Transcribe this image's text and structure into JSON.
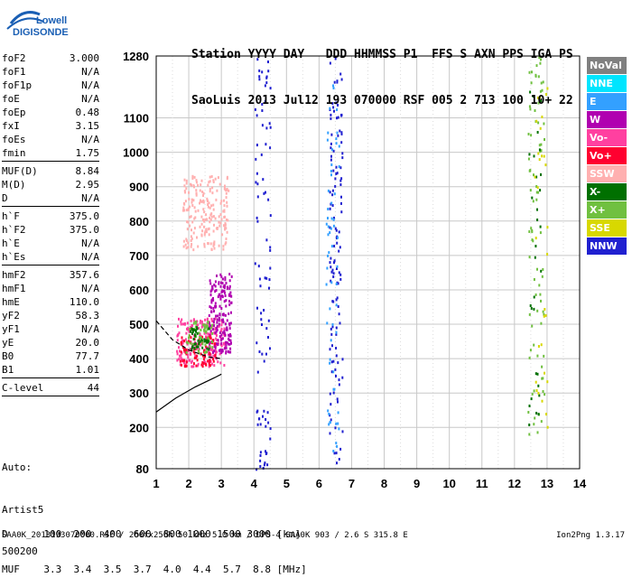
{
  "logo": {
    "line1": "Lowell",
    "line2": "DIGISONDE"
  },
  "header": {
    "line1": "Station YYYY DAY   DDD HHMMSS P1  FFS S AXN PPS IGA PS",
    "line2": "SaoLuis 2013 Jul12 193 070000 RSF 005 2 713 100 10+ 22"
  },
  "params": [
    {
      "name": "foF2",
      "value": "3.000"
    },
    {
      "name": "foF1",
      "value": "N/A"
    },
    {
      "name": "foF1p",
      "value": "N/A"
    },
    {
      "name": "foE",
      "value": "N/A"
    },
    {
      "name": "foEp",
      "value": "0.48"
    },
    {
      "name": "fxI",
      "value": "3.15"
    },
    {
      "name": "foEs",
      "value": "N/A"
    },
    {
      "name": "fmin",
      "value": "1.75",
      "sep": true
    },
    {
      "name": "MUF(D)",
      "value": "8.84"
    },
    {
      "name": "M(D)",
      "value": "2.95"
    },
    {
      "name": "D",
      "value": "N/A",
      "sep": true
    },
    {
      "name": "h`F",
      "value": "375.0"
    },
    {
      "name": "h`F2",
      "value": "375.0"
    },
    {
      "name": "h`E",
      "value": "N/A"
    },
    {
      "name": "h`Es",
      "value": "N/A",
      "sep": true
    },
    {
      "name": "hmF2",
      "value": "357.6"
    },
    {
      "name": "hmF1",
      "value": "N/A"
    },
    {
      "name": "hmE",
      "value": "110.0"
    },
    {
      "name": "yF2",
      "value": "58.3"
    },
    {
      "name": "yF1",
      "value": "N/A"
    },
    {
      "name": "yE",
      "value": "20.0"
    },
    {
      "name": "B0",
      "value": "77.7"
    },
    {
      "name": "B1",
      "value": "1.01",
      "sep": true
    },
    {
      "name": "C-level",
      "value": "44",
      "sep": true
    }
  ],
  "auto": {
    "line1": "Auto:",
    "line2": "Artist5",
    "line3": "500200"
  },
  "legend": [
    {
      "label": "NoVal",
      "color": "#808080"
    },
    {
      "label": "NNE",
      "color": "#00e5ff"
    },
    {
      "label": "E",
      "color": "#33a0ff"
    },
    {
      "label": "W",
      "color": "#b000b0"
    },
    {
      "label": "Vo-",
      "color": "#ff40a0"
    },
    {
      "label": "Vo+",
      "color": "#ff0030"
    },
    {
      "label": "SSW",
      "color": "#ffb0b0"
    },
    {
      "label": "X-",
      "color": "#007000"
    },
    {
      "label": "X+",
      "color": "#70c040"
    },
    {
      "label": "SSE",
      "color": "#d8d800"
    },
    {
      "label": "NNW",
      "color": "#2020d0"
    }
  ],
  "dmuf": {
    "line1": "D      100  200  400  600  800 1000 1500 3000 [km]",
    "line2": "MUF    3.3  3.4  3.5  3.7  4.0  4.4  5.7  8.8 [MHz]"
  },
  "footer": {
    "left": "SAA0K_2013193070000.RSF / 260fx256h 50 kHz 5.0 km / DPS-4 SAA0K 903 / 2.6 S 315.8 E",
    "right": "Ion2Png 1.3.17"
  },
  "chart_data": {
    "type": "scatter",
    "xlim": [
      1,
      14
    ],
    "ylim": [
      80,
      1280
    ],
    "xticks": [
      1,
      2,
      3,
      4,
      5,
      6,
      7,
      8,
      9,
      10,
      11,
      12,
      13,
      14
    ],
    "yticks": [
      80,
      200,
      300,
      400,
      500,
      600,
      700,
      800,
      900,
      1000,
      1100,
      1280
    ],
    "grid": true,
    "echo_regions": [
      {
        "color": "#ff40a0",
        "x": [
          1.6,
          3.1
        ],
        "y": [
          380,
          520
        ],
        "n": 220
      },
      {
        "color": "#b000b0",
        "x": [
          2.6,
          3.3
        ],
        "y": [
          420,
          650
        ],
        "n": 180
      },
      {
        "color": "#ffb0b0",
        "x": [
          1.8,
          3.2
        ],
        "y": [
          720,
          940
        ],
        "n": 200
      },
      {
        "color": "#ff0030",
        "x": [
          1.7,
          2.8
        ],
        "y": [
          380,
          470
        ],
        "n": 80
      },
      {
        "color": "#70c040",
        "x": [
          1.9,
          2.7
        ],
        "y": [
          420,
          520
        ],
        "n": 60
      },
      {
        "color": "#007000",
        "x": [
          2.0,
          2.6
        ],
        "y": [
          430,
          500
        ],
        "n": 40
      },
      {
        "color": "#2020d0",
        "x": [
          4.0,
          4.5
        ],
        "y": [
          80,
          1280
        ],
        "n": 90
      },
      {
        "color": "#2020d0",
        "x": [
          6.3,
          6.7
        ],
        "y": [
          80,
          1280
        ],
        "n": 120
      },
      {
        "color": "#33a0ff",
        "x": [
          6.2,
          6.6
        ],
        "y": [
          120,
          1200
        ],
        "n": 60
      },
      {
        "color": "#70c040",
        "x": [
          12.4,
          12.9
        ],
        "y": [
          180,
          1280
        ],
        "n": 80
      },
      {
        "color": "#007000",
        "x": [
          12.4,
          12.8
        ],
        "y": [
          200,
          1200
        ],
        "n": 30
      },
      {
        "color": "#d8d800",
        "x": [
          12.6,
          13.0
        ],
        "y": [
          200,
          1200
        ],
        "n": 30
      }
    ],
    "curves": [
      {
        "style": "solid",
        "x": [
          1,
          1.6,
          2.2,
          2.8,
          3.0
        ],
        "y": [
          245,
          285,
          318,
          345,
          355
        ]
      },
      {
        "style": "dashed",
        "x": [
          1,
          1.5,
          2.0,
          2.6,
          3.0
        ],
        "y": [
          510,
          455,
          425,
          405,
          400
        ]
      }
    ]
  }
}
